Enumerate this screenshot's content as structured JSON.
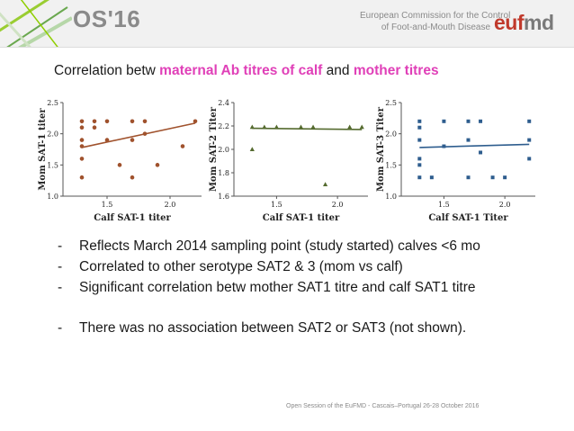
{
  "header": {
    "conference": "OS'16",
    "organization_line1": "European Commission for the Control",
    "organization_line2": "of Foot-and-Mouth Disease",
    "logo_prefix": "eu",
    "logo_accent": "f",
    "logo_rest": "md"
  },
  "title": {
    "part1": "Correlation betw ",
    "highlight1": "maternal Ab titres of calf",
    "part2": " and ",
    "highlight2": "mother titres"
  },
  "bullets": [
    "Reflects March 2014 sampling point (study started) calves <6 mo",
    "Correlated to other serotype SAT2 & 3 (mom vs calf)",
    "Significant correlation betw mother SAT1 titre and calf SAT1 titre",
    "There was no association between SAT2 or SAT3 (not shown)."
  ],
  "bullet_dash": "-",
  "footer": "Open Session of the EuFMD - Cascais–Portugal 26-28 October 2016",
  "colors": {
    "highlight": "#e040b8",
    "sat1": "#a0522d",
    "sat2": "#556b2f",
    "sat3": "#2e5d8e"
  },
  "chart_data": [
    {
      "type": "scatter",
      "title": "",
      "xlabel": "Calf SAT-1 titer",
      "ylabel": "Mom SAT-1 titer",
      "xlim": [
        1.15,
        2.25
      ],
      "ylim": [
        1.0,
        2.5
      ],
      "xticks": [
        1.5,
        2.0
      ],
      "yticks": [
        1.0,
        1.5,
        2.0,
        2.5
      ],
      "xtick_labels": [
        "1.5",
        "2.0"
      ],
      "ytick_labels": [
        "1.0",
        "1.5",
        "2.0",
        "2.5"
      ],
      "marker": "circle",
      "color": "#a0522d",
      "points": [
        [
          1.3,
          2.2
        ],
        [
          1.3,
          2.1
        ],
        [
          1.3,
          1.9
        ],
        [
          1.3,
          1.8
        ],
        [
          1.3,
          1.6
        ],
        [
          1.3,
          1.3
        ],
        [
          1.4,
          2.2
        ],
        [
          1.4,
          2.1
        ],
        [
          1.5,
          2.2
        ],
        [
          1.5,
          1.9
        ],
        [
          1.6,
          1.5
        ],
        [
          1.7,
          2.2
        ],
        [
          1.7,
          1.9
        ],
        [
          1.7,
          1.3
        ],
        [
          1.8,
          2.2
        ],
        [
          1.8,
          2.0
        ],
        [
          1.9,
          1.5
        ],
        [
          2.1,
          1.8
        ],
        [
          2.2,
          2.2
        ]
      ],
      "fit": [
        [
          1.3,
          1.78
        ],
        [
          2.2,
          2.17
        ]
      ]
    },
    {
      "type": "scatter",
      "title": "",
      "xlabel": "Calf SAT-1 titer",
      "ylabel": "Mom SAT-2 Titer",
      "xlim": [
        1.15,
        2.25
      ],
      "ylim": [
        1.6,
        2.4
      ],
      "xticks": [
        1.5,
        2.0
      ],
      "yticks": [
        1.6,
        1.8,
        2.0,
        2.2,
        2.4
      ],
      "xtick_labels": [
        "1.5",
        "2.0"
      ],
      "ytick_labels": [
        "1.6",
        "1.8",
        "2.0",
        "2.2",
        "2.4"
      ],
      "marker": "triangle",
      "color": "#556b2f",
      "points": [
        [
          1.3,
          2.19
        ],
        [
          1.3,
          2.0
        ],
        [
          1.4,
          2.19
        ],
        [
          1.5,
          2.19
        ],
        [
          1.7,
          2.19
        ],
        [
          1.8,
          2.19
        ],
        [
          1.9,
          1.7
        ],
        [
          2.1,
          2.19
        ],
        [
          2.2,
          2.19
        ]
      ],
      "fit": [
        [
          1.3,
          2.18
        ],
        [
          2.2,
          2.17
        ]
      ]
    },
    {
      "type": "scatter",
      "title": "",
      "xlabel": "Calf SAT-1 Titer",
      "ylabel": "Mom SAT-3 Titer",
      "xlim": [
        1.15,
        2.25
      ],
      "ylim": [
        1.0,
        2.5
      ],
      "xticks": [
        1.5,
        2.0
      ],
      "yticks": [
        1.0,
        1.5,
        2.0,
        2.5
      ],
      "xtick_labels": [
        "1.5",
        "2.0"
      ],
      "ytick_labels": [
        "1.0",
        "1.5",
        "2.0",
        "2.5"
      ],
      "marker": "square",
      "color": "#2e5d8e",
      "points": [
        [
          1.3,
          2.2
        ],
        [
          1.3,
          2.1
        ],
        [
          1.3,
          1.9
        ],
        [
          1.3,
          1.6
        ],
        [
          1.3,
          1.5
        ],
        [
          1.3,
          1.3
        ],
        [
          1.4,
          1.3
        ],
        [
          1.5,
          2.2
        ],
        [
          1.5,
          1.8
        ],
        [
          1.7,
          2.2
        ],
        [
          1.7,
          1.9
        ],
        [
          1.7,
          1.3
        ],
        [
          1.8,
          2.2
        ],
        [
          1.8,
          1.7
        ],
        [
          1.9,
          1.3
        ],
        [
          2.0,
          1.3
        ],
        [
          2.2,
          2.2
        ],
        [
          2.2,
          1.9
        ],
        [
          2.2,
          1.6
        ]
      ],
      "fit": [
        [
          1.3,
          1.78
        ],
        [
          2.2,
          1.83
        ]
      ]
    }
  ]
}
